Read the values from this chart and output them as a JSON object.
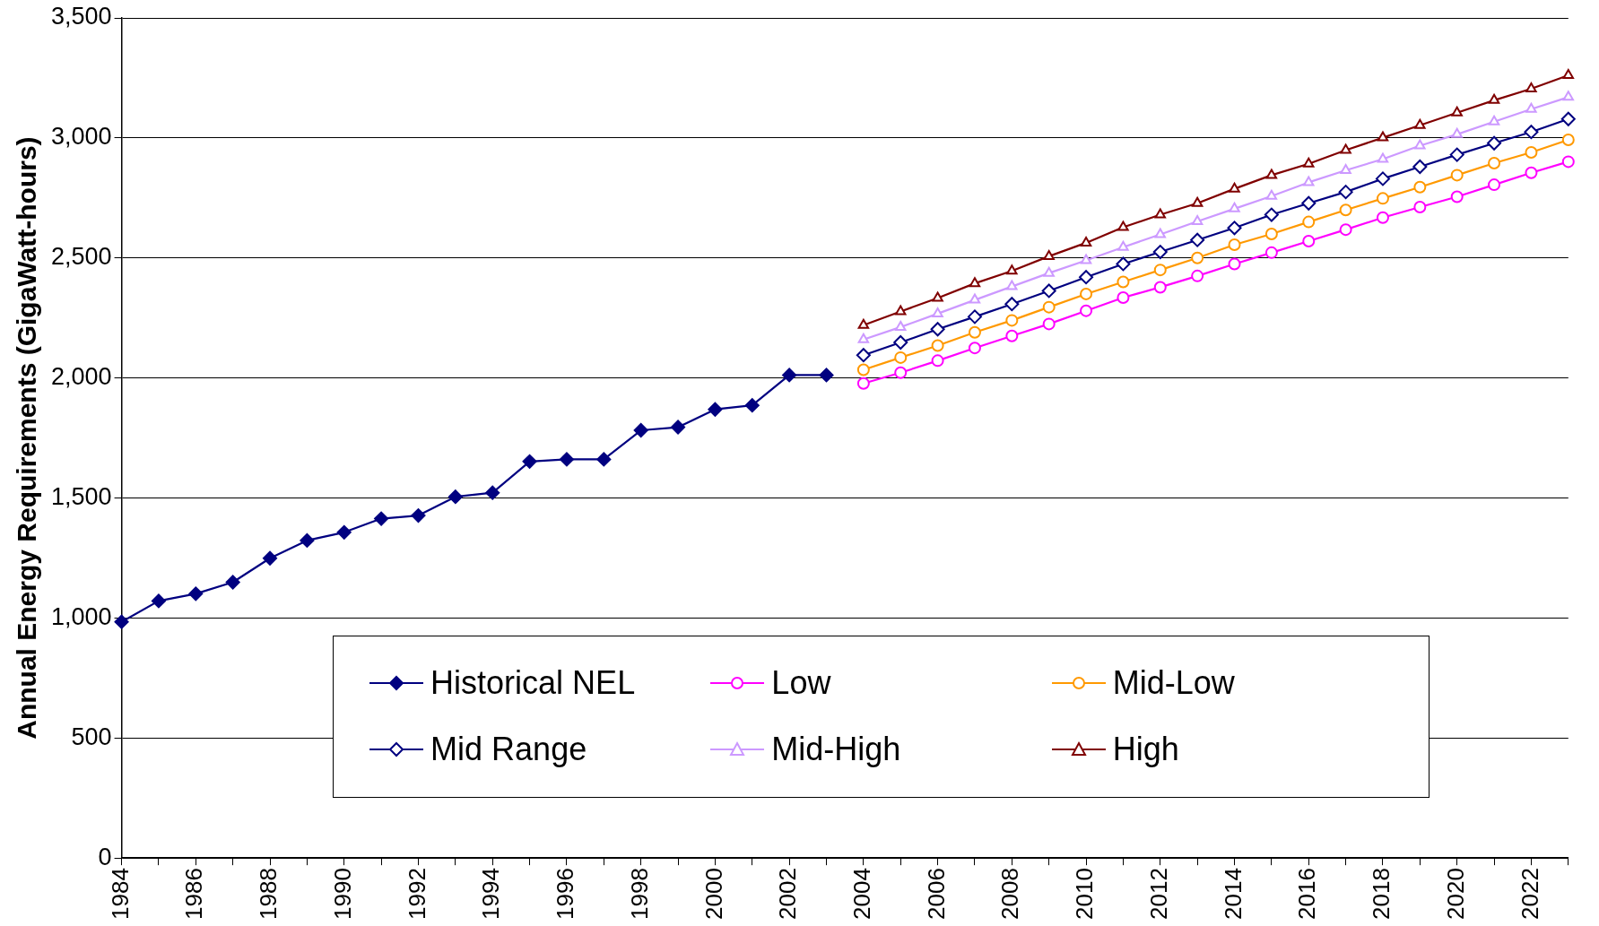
{
  "chart_data": {
    "type": "line",
    "ylabel": "Annual Energy Requirements (GigaWatt-hours)",
    "categories": [
      "1984",
      null,
      "1986",
      null,
      "1988",
      null,
      "1990",
      null,
      "1992",
      null,
      "1994",
      null,
      "1996",
      null,
      "1998",
      null,
      "2000",
      null,
      "2002",
      null,
      "2004",
      null,
      "2006",
      null,
      "2008",
      null,
      "2010",
      null,
      "2012",
      null,
      "2014",
      null,
      "2016",
      null,
      "2018",
      null,
      "2020",
      null,
      "2022",
      null
    ],
    "series": [
      {
        "name": "Historical NEL",
        "color": "#000080",
        "marker": "diamond",
        "values": [
          984,
          1071,
          1101,
          1149,
          1249,
          1323,
          1357,
          1414,
          1427,
          1505,
          1522,
          1652,
          1661,
          1661,
          1782,
          1795,
          1869,
          1886,
          2012,
          2012,
          null,
          null,
          null,
          null,
          null,
          null,
          null,
          null,
          null,
          null,
          null,
          null,
          null,
          null,
          null,
          null,
          null,
          null,
          null,
          null
        ]
      },
      {
        "name": "Low",
        "color": "#ff00ff",
        "marker": "circle",
        "values": [
          null,
          null,
          null,
          null,
          null,
          null,
          null,
          null,
          null,
          null,
          null,
          null,
          null,
          null,
          null,
          null,
          null,
          null,
          null,
          null,
          1977,
          2022,
          2072,
          2125,
          2175,
          2225,
          2280,
          2335,
          2378,
          2425,
          2475,
          2522,
          2570,
          2618,
          2668,
          2712,
          2755,
          2805,
          2855,
          2901
        ]
      },
      {
        "name": "Mid-Low",
        "color": "#ff9900",
        "marker": "circle",
        "values": [
          null,
          null,
          null,
          null,
          null,
          null,
          null,
          null,
          null,
          null,
          null,
          null,
          null,
          null,
          null,
          null,
          null,
          null,
          null,
          null,
          2034,
          2085,
          2135,
          2190,
          2240,
          2295,
          2350,
          2400,
          2450,
          2500,
          2555,
          2600,
          2650,
          2700,
          2748,
          2795,
          2845,
          2895,
          2940,
          2992
        ]
      },
      {
        "name": "Mid Range",
        "color": "#000080",
        "marker": "diamond",
        "values": [
          null,
          null,
          null,
          null,
          null,
          null,
          null,
          null,
          null,
          null,
          null,
          null,
          null,
          null,
          null,
          null,
          null,
          null,
          null,
          null,
          2095,
          2148,
          2203,
          2255,
          2308,
          2363,
          2420,
          2475,
          2525,
          2575,
          2625,
          2680,
          2728,
          2775,
          2830,
          2880,
          2930,
          2978,
          3025,
          3079
        ]
      },
      {
        "name": "Mid-High",
        "color": "#cc99ff",
        "marker": "triangle",
        "values": [
          null,
          null,
          null,
          null,
          null,
          null,
          null,
          null,
          null,
          null,
          null,
          null,
          null,
          null,
          null,
          null,
          null,
          null,
          null,
          null,
          2160,
          2212,
          2268,
          2325,
          2381,
          2437,
          2490,
          2545,
          2598,
          2652,
          2705,
          2758,
          2815,
          2865,
          2912,
          2968,
          3015,
          3068,
          3120,
          3170
        ]
      },
      {
        "name": "High",
        "color": "#800000",
        "marker": "triangle",
        "values": [
          null,
          null,
          null,
          null,
          null,
          null,
          null,
          null,
          null,
          null,
          null,
          null,
          null,
          null,
          null,
          null,
          null,
          null,
          null,
          null,
          2220,
          2277,
          2333,
          2394,
          2446,
          2507,
          2563,
          2628,
          2680,
          2728,
          2788,
          2845,
          2892,
          2949,
          3001,
          3053,
          3105,
          3157,
          3205,
          3261
        ]
      }
    ],
    "ylim": [
      0,
      3500
    ],
    "yticks": [
      0,
      500,
      {
        "value": 1000,
        "label": "1,000"
      },
      {
        "value": 1500,
        "label": "1,500"
      },
      {
        "value": 2000,
        "label": "2,000"
      },
      {
        "value": 2500,
        "label": "2,500"
      },
      {
        "value": 3000,
        "label": "3,000"
      },
      {
        "value": 3500,
        "label": "3,500"
      }
    ],
    "grid": "y",
    "legend": "bottom"
  }
}
